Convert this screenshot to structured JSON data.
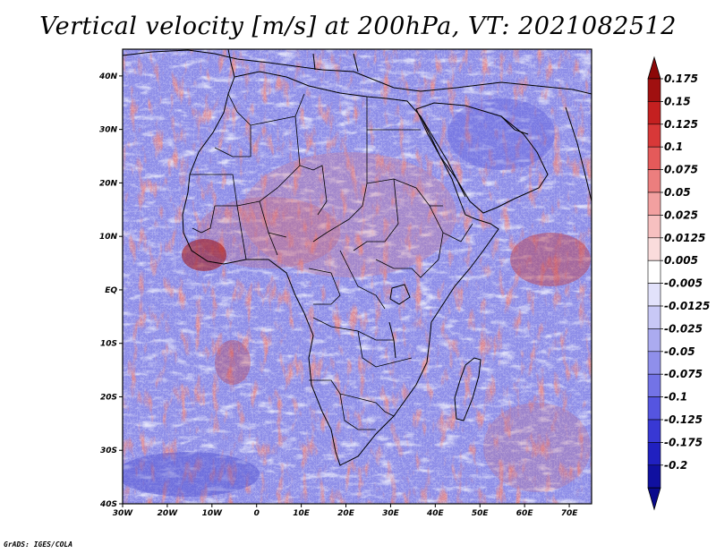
{
  "title": "Vertical velocity [m/s] at 200hPa, VT: 2021082512",
  "credit": "GrADS: IGES/COLA",
  "map": {
    "lat_labels": [
      "40N",
      "30N",
      "20N",
      "10N",
      "EQ",
      "10S",
      "20S",
      "30S",
      "40S"
    ],
    "lon_labels": [
      "30W",
      "20W",
      "10W",
      "0",
      "10E",
      "20E",
      "30E",
      "40E",
      "50E",
      "60E",
      "70E"
    ],
    "lon_range": [
      -30,
      75
    ],
    "lat_range": [
      -40,
      45
    ],
    "field_colors": {
      "positive": "#e06a6a",
      "negative": "#6a6ae6",
      "neutral": "#f0f0ff"
    },
    "boundary_color": "#000000"
  },
  "colorbar": {
    "labels": [
      "0.175",
      "0.15",
      "0.125",
      "0.1",
      "0.075",
      "0.05",
      "0.025",
      "0.0125",
      "0.005",
      "-0.005",
      "-0.0125",
      "-0.025",
      "-0.05",
      "-0.075",
      "-0.1",
      "-0.125",
      "-0.175",
      "-0.2"
    ],
    "colors": [
      "#a01010",
      "#c42020",
      "#d83838",
      "#e45a5a",
      "#ec7e7e",
      "#f2a0a0",
      "#f7c0c0",
      "#fadcdc",
      "#ffffff",
      "#e2e2fb",
      "#c8c8f6",
      "#ababf0",
      "#8f8feb",
      "#7373e6",
      "#5555e0",
      "#3838d4",
      "#2020c0",
      "#1010a0"
    ],
    "top_arrow_color": "#8c0808",
    "bottom_arrow_color": "#0a0a8c"
  }
}
